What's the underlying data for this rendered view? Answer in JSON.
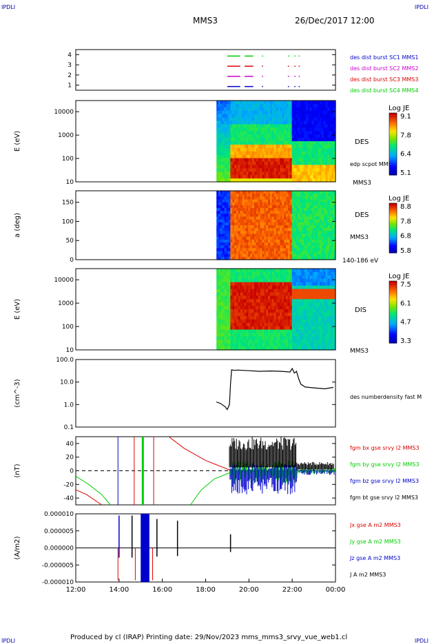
{
  "header": {
    "corner_tl": "IPDLI",
    "corner_tr": "IPDLI",
    "spacecraft": "MMS3",
    "datetime": "26/Dec/2017 12:00"
  },
  "footer": {
    "credit": "Produced by cl (IRAP)   Printing date: 29/Nov/2023   mms_mms3_srvy_vue_web1.cl",
    "corner_bl": "IPDLI",
    "corner_br": "IPDLI"
  },
  "time_axis": {
    "ticks": [
      "12:00",
      "14:00",
      "16:00",
      "18:00",
      "20:00",
      "22:00",
      "00:00"
    ],
    "start_hour": 12,
    "end_hour": 24
  },
  "colors": {
    "mms1": "#0000cc",
    "mms2": "#cc00cc",
    "mms3": "#dd0000",
    "mms4": "#00cc00",
    "black": "#000000"
  },
  "chart_data": [
    {
      "type": "scatter",
      "panel": "burst_availability",
      "ylim": [
        0.5,
        4.5
      ],
      "yticks": [
        "4",
        "3",
        "2",
        "1"
      ],
      "legend": [
        {
          "name": "des dist burst SC1 MMS1",
          "color": "#0000cc"
        },
        {
          "name": "des dist burst SC2 MMS2",
          "color": "#cc00cc"
        },
        {
          "name": "des dist burst SC3 MMS3",
          "color": "#dd0000"
        },
        {
          "name": "des dist burst SC4 MMS4",
          "color": "#00cc00"
        }
      ],
      "intervals_hours": [
        [
          19.0,
          19.6
        ],
        [
          19.8,
          20.2
        ],
        [
          20.6,
          20.65
        ],
        [
          21.8,
          21.85
        ],
        [
          22.1,
          22.15
        ],
        [
          22.3,
          22.35
        ]
      ]
    },
    {
      "type": "heatmap",
      "panel": "des_energy",
      "ylabel": "E (eV)",
      "yscale": "log",
      "ylim": [
        10,
        30000
      ],
      "yticks": [
        "10000",
        "1000",
        "100",
        "10"
      ],
      "label": "DES",
      "sublabel": "edp scpot MMS3",
      "sublabel2": "MMS3",
      "colorbar": {
        "title": "Log JE",
        "ticks": [
          "9.1",
          "7.8",
          "6.4",
          "5.1"
        ]
      }
    },
    {
      "type": "heatmap",
      "panel": "des_pitch",
      "ylabel": "a (deg)",
      "ylim": [
        0,
        180
      ],
      "yticks": [
        "150",
        "100",
        "50",
        "0"
      ],
      "label": "DES",
      "sublabel": "MMS3",
      "sublabel2": "140-186 eV",
      "colorbar": {
        "title": "Log JE",
        "ticks": [
          "8.8",
          "7.8",
          "6.8",
          "5.8"
        ]
      }
    },
    {
      "type": "heatmap",
      "panel": "dis_energy",
      "ylabel": "E (eV)",
      "yscale": "log",
      "ylim": [
        10,
        30000
      ],
      "yticks": [
        "10000",
        "1000",
        "100",
        "10"
      ],
      "label": "DIS",
      "sublabel": "MMS3",
      "colorbar": {
        "title": "Log JE",
        "ticks": [
          "7.5",
          "6.1",
          "4.7",
          "3.3"
        ]
      }
    },
    {
      "type": "line",
      "panel": "density",
      "ylabel": "(cm^-3)",
      "yscale": "log",
      "ylim": [
        0.1,
        100
      ],
      "yticks": [
        "100.0",
        "10.0",
        "1.0",
        "0.1"
      ],
      "series": [
        {
          "name": "des numberdensity fast M",
          "color": "#000000",
          "x": [
            18.5,
            18.7,
            18.9,
            19.0,
            19.1,
            19.15,
            19.2,
            19.3,
            19.5,
            20.0,
            20.5,
            21.0,
            21.5,
            21.9,
            22.0,
            22.1,
            22.2,
            22.3,
            22.4,
            22.6,
            23.0,
            23.5,
            23.9
          ],
          "values": [
            1.3,
            1.1,
            0.8,
            0.6,
            1.0,
            8.0,
            35.0,
            33.0,
            34.0,
            32.0,
            30.0,
            31.0,
            30.0,
            28.0,
            40.0,
            25.0,
            30.0,
            14.0,
            8.0,
            6.0,
            5.5,
            5.0,
            5.8
          ]
        }
      ]
    },
    {
      "type": "line",
      "panel": "magnetic_field",
      "ylabel": "(nT)",
      "ylim": [
        -50,
        50
      ],
      "yticks": [
        "40",
        "20",
        "0",
        "-20",
        "-40"
      ],
      "series": [
        {
          "name": "fgm bx gse srvy l2 MMS3",
          "color": "#dd0000"
        },
        {
          "name": "fgm by gse srvy l2 MMS3",
          "color": "#00cc00"
        },
        {
          "name": "fgm bz gse srvy l2 MMS3",
          "color": "#0000cc"
        },
        {
          "name": "fgm bt gse srvy l2 MMS3",
          "color": "#000000"
        }
      ]
    },
    {
      "type": "line",
      "panel": "current_density",
      "ylabel": "(A/m2)",
      "ylim": [
        -1e-05,
        1e-05
      ],
      "yticks": [
        "0.000010",
        "0.000005",
        "0.000000",
        "-0.000005",
        "-0.000010"
      ],
      "series": [
        {
          "name": "Jx gse A m2 MMS3",
          "color": "#dd0000"
        },
        {
          "name": "Jy gse A m2 MMS3",
          "color": "#00cc00"
        },
        {
          "name": "Jz gse A m2 MMS3",
          "color": "#0000cc"
        },
        {
          "name": "J A m2 MMS3",
          "color": "#000000"
        }
      ]
    }
  ]
}
